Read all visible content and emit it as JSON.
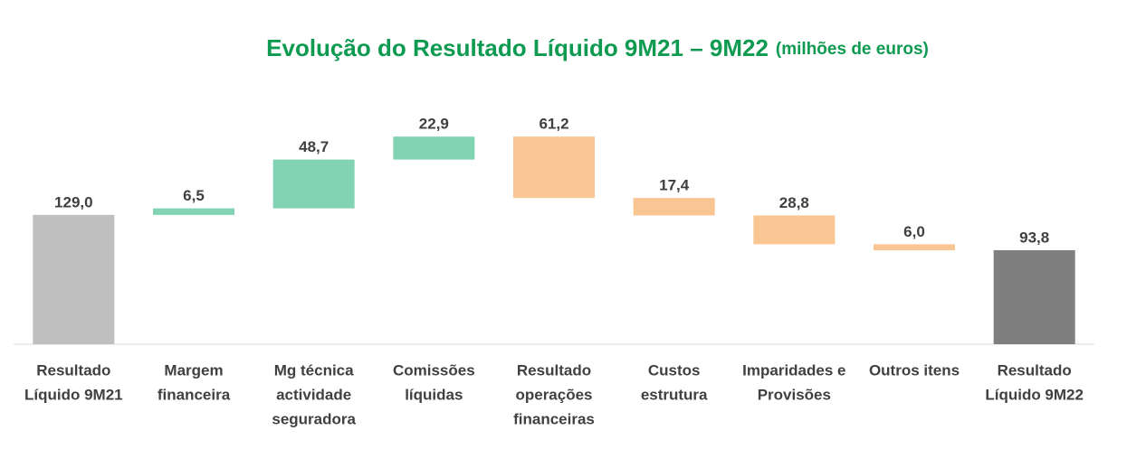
{
  "chart_data": {
    "type": "waterfall",
    "title": "Evolução do Resultado Líquido 9M21 – 9M22",
    "subtitle": "(milhões de euros)",
    "categories": [
      [
        "Resultado",
        "Líquido 9M21"
      ],
      [
        "Margem",
        "financeira"
      ],
      [
        "Mg técnica",
        "actividade",
        "seguradora"
      ],
      [
        "Comissões",
        "líquidas"
      ],
      [
        "Resultado",
        "operações",
        "financeiras"
      ],
      [
        "Custos",
        "estrutura"
      ],
      [
        "Imparidades e",
        "Provisões"
      ],
      [
        "Outros itens"
      ],
      [
        "Resultado",
        "Líquido 9M22"
      ]
    ],
    "measure": [
      "absolute",
      "relative",
      "relative",
      "relative",
      "relative",
      "relative",
      "relative",
      "relative",
      "absolute"
    ],
    "values": [
      129.0,
      6.5,
      48.7,
      22.9,
      -61.2,
      -17.4,
      -28.8,
      -6.0,
      93.8
    ],
    "value_labels": [
      "129,0",
      "6,5",
      "48,7",
      "22,9",
      "61,2",
      "17,4",
      "28,8",
      "6,0",
      "93,8"
    ],
    "colors": [
      "#bfbfbf",
      "#82d3b4",
      "#82d3b4",
      "#82d3b4",
      "#f9c592",
      "#f9c592",
      "#f9c592",
      "#f9c592",
      "#7f7f7f"
    ],
    "ylim": [
      0,
      210
    ]
  }
}
